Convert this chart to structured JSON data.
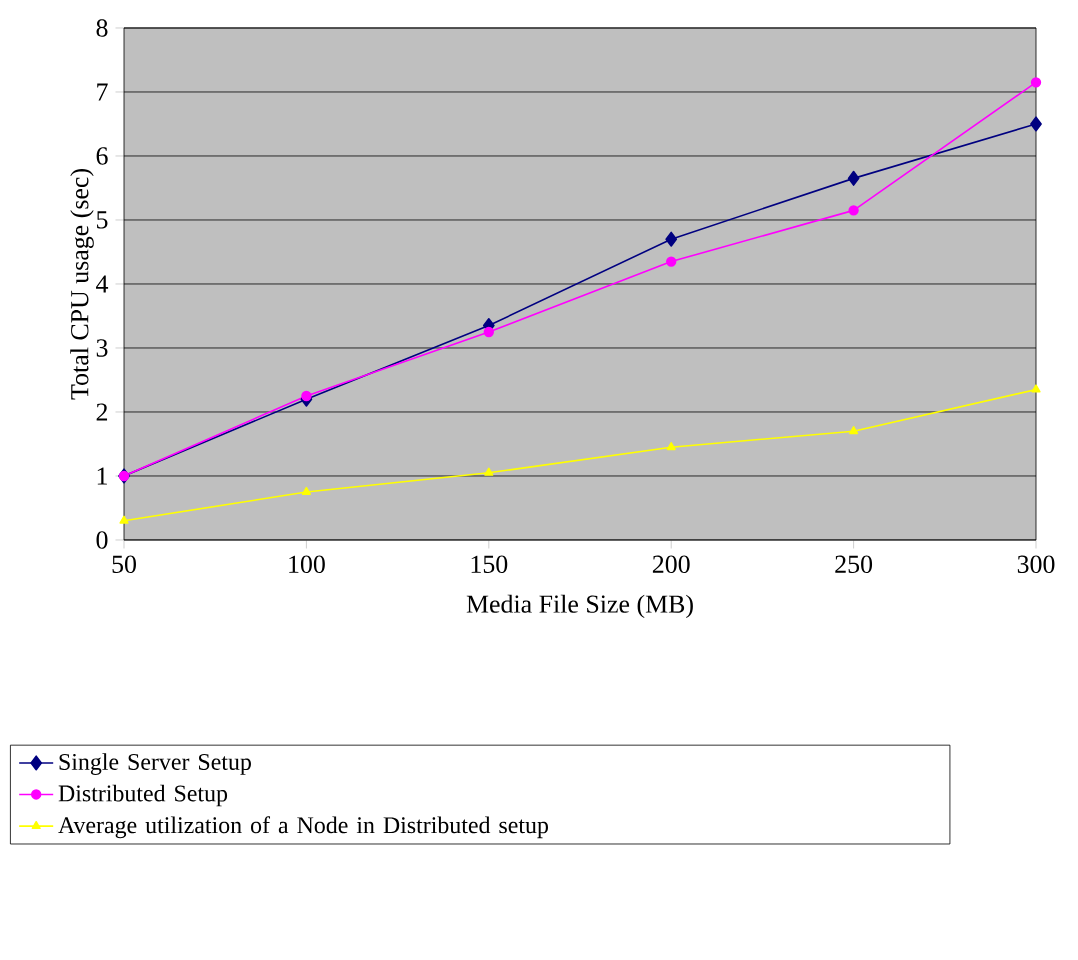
{
  "chart_data": {
    "type": "line",
    "xlabel": "Media File Size (MB)",
    "ylabel": "Total CPU usage (sec)",
    "x": [
      50,
      100,
      150,
      200,
      250,
      300
    ],
    "series": [
      {
        "name": "Single Server Setup",
        "color": "#000080",
        "marker": "diamond",
        "values": [
          1.0,
          2.2,
          3.35,
          4.7,
          5.65,
          6.5
        ]
      },
      {
        "name": "Distributed Setup",
        "color": "#ff00ff",
        "marker": "circle",
        "values": [
          1.0,
          2.25,
          3.25,
          4.35,
          5.15,
          7.15
        ]
      },
      {
        "name": "Average utilization of a Node in Distributed setup",
        "color": "#ffff00",
        "marker": "triangle",
        "values": [
          0.3,
          0.75,
          1.05,
          1.45,
          1.7,
          2.35
        ]
      }
    ],
    "xlim": [
      50,
      300
    ],
    "xticks": [
      50,
      100,
      150,
      200,
      250,
      300
    ],
    "ylim": [
      0,
      8
    ],
    "yticks": [
      0,
      1,
      2,
      3,
      4,
      5,
      6,
      7,
      8
    ],
    "grid": "y",
    "legend": "bottom"
  }
}
